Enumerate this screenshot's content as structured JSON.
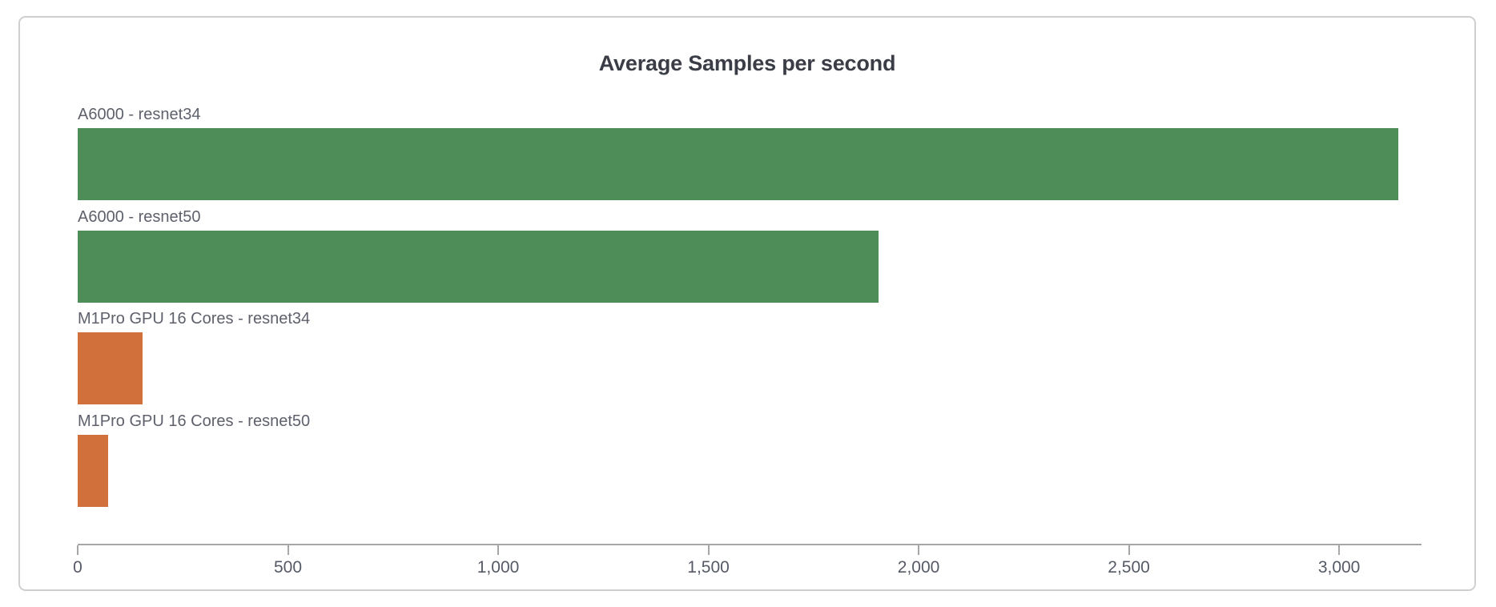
{
  "chart_data": {
    "type": "bar",
    "orientation": "horizontal",
    "title": "Average Samples per second",
    "categories": [
      "A6000 - resnet34",
      "A6000 - resnet50",
      "M1Pro GPU 16 Cores - resnet34",
      "M1Pro GPU 16 Cores - resnet50"
    ],
    "values": [
      3148,
      1910,
      155,
      72
    ],
    "bar_colors": [
      "#4e8c58",
      "#4e8c58",
      "#d1703a",
      "#d1703a"
    ],
    "xlabel": "",
    "ylabel": "",
    "xlim": [
      0,
      3196
    ],
    "x_ticks": [
      0,
      500,
      1000,
      1500,
      2000,
      2500,
      3000
    ],
    "x_tick_labels": [
      "0",
      "500",
      "1,000",
      "1,500",
      "2,000",
      "2,500",
      "3,000"
    ],
    "grid": false,
    "legend": false
  },
  "colors": {
    "bar_green": "#4e8c58",
    "bar_orange": "#d1703a",
    "title_text": "#3a3d45",
    "label_text": "#5e616c",
    "tick_text": "#565a66",
    "axis_line": "#a6a6a6",
    "card_border": "#cfcfcf",
    "background": "#ffffff"
  }
}
